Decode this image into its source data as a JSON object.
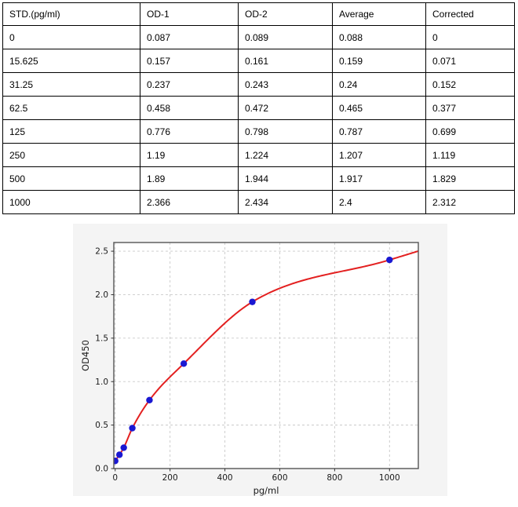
{
  "table": {
    "columns": [
      "STD.(pg/ml)",
      "OD-1",
      "OD-2",
      "Average",
      "Corrected"
    ],
    "rows": [
      [
        "0",
        "0.087",
        "0.089",
        "0.088",
        "0"
      ],
      [
        "15.625",
        "0.157",
        "0.161",
        "0.159",
        "0.071"
      ],
      [
        "31.25",
        "0.237",
        "0.243",
        "0.24",
        "0.152"
      ],
      [
        "62.5",
        "0.458",
        "0.472",
        "0.465",
        "0.377"
      ],
      [
        "125",
        "0.776",
        "0.798",
        "0.787",
        "0.699"
      ],
      [
        "250",
        "1.19",
        "1.224",
        "1.207",
        "1.119"
      ],
      [
        "500",
        "1.89",
        "1.944",
        "1.917",
        "1.829"
      ],
      [
        "1000",
        "2.366",
        "2.434",
        "2.4",
        "2.312"
      ]
    ]
  },
  "chart_data": {
    "type": "scatter",
    "title": "",
    "xlabel": "pg/ml",
    "ylabel": "OD450",
    "x": [
      0,
      15.625,
      31.25,
      62.5,
      125,
      250,
      500,
      1000
    ],
    "y": [
      0.088,
      0.159,
      0.24,
      0.465,
      0.787,
      1.207,
      1.917,
      2.4
    ],
    "series": [
      {
        "name": "standard-points",
        "style": "scatter",
        "color": "#1a18d2"
      },
      {
        "name": "fitted-standard-curve",
        "style": "smooth-line",
        "color": "#e32020"
      }
    ],
    "xticks": [
      0,
      200,
      400,
      600,
      800,
      1000
    ],
    "xtick_labels": [
      "0",
      "200",
      "400",
      "600",
      "800",
      "1000"
    ],
    "yticks": [
      0,
      0.5,
      1,
      1.5,
      2,
      2.5
    ],
    "ytick_labels": [
      "0.0",
      "0.5",
      "1.0",
      "1.5",
      "2.0",
      "2.5"
    ],
    "xlim": [
      -5,
      1105
    ],
    "ylim": [
      0,
      2.6
    ],
    "grid": true,
    "legend": "none",
    "figure_bg": "#f4f4f4",
    "plot_bg": "#ffffff",
    "spine_color": "#555555",
    "grid_color": "#c9c9c9",
    "tick_color": "#333333",
    "text_color": "#1a1a1a"
  }
}
